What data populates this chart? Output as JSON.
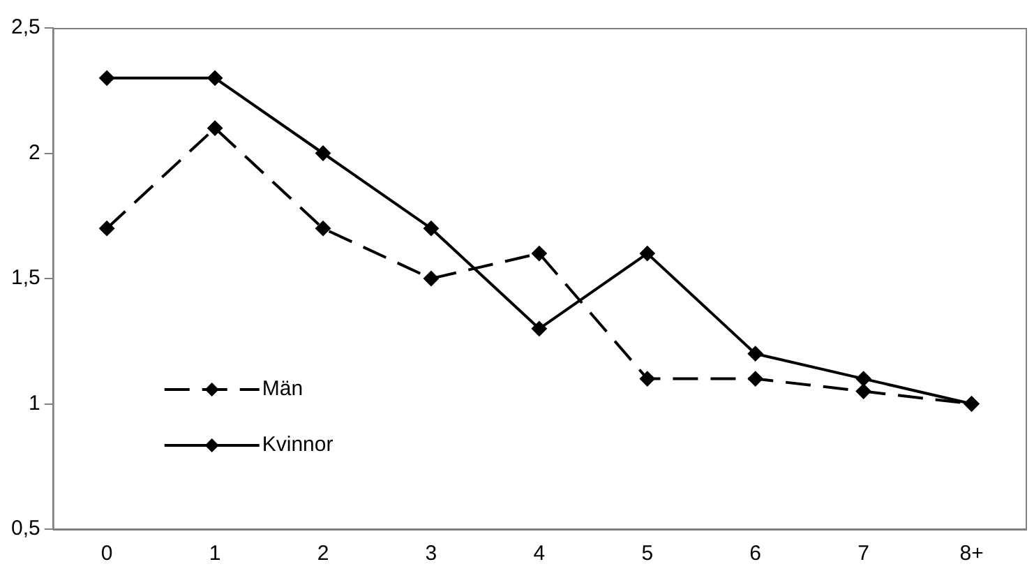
{
  "chart_data": {
    "type": "line",
    "categories": [
      "0",
      "1",
      "2",
      "3",
      "4",
      "5",
      "6",
      "7",
      "8+"
    ],
    "series": [
      {
        "name": "Män",
        "color": "#000000",
        "line_style": "dashed",
        "values": [
          1.7,
          2.1,
          1.7,
          1.5,
          1.6,
          1.1,
          1.1,
          1.05,
          1.0
        ]
      },
      {
        "name": "Kvinnor",
        "color": "#000000",
        "line_style": "solid",
        "values": [
          2.3,
          2.3,
          2.0,
          1.7,
          1.3,
          1.6,
          1.2,
          1.1,
          1.0
        ]
      }
    ],
    "ylim": [
      0.5,
      2.5
    ],
    "yticks": [
      {
        "value": 0.5,
        "label": "0,5"
      },
      {
        "value": 1,
        "label": "1"
      },
      {
        "value": 1.5,
        "label": "1,5"
      },
      {
        "value": 2,
        "label": "2"
      },
      {
        "value": 2.5,
        "label": "2,5"
      }
    ],
    "grid": false,
    "legend": "bottom left",
    "marker": "diamond"
  }
}
